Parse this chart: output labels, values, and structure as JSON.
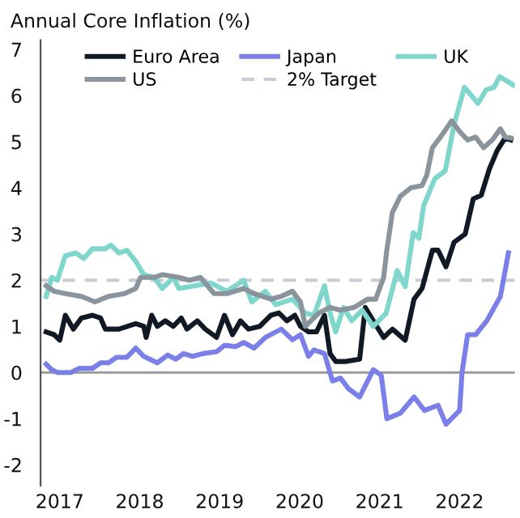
{
  "chart_data": {
    "type": "line",
    "title": "Annual Core Inflation (%)",
    "series": [
      {
        "name": "Euro Area",
        "color": "#111a24",
        "x": [
          2016.83,
          2016.93,
          2017.0,
          2017.07,
          2017.17,
          2017.27,
          2017.41,
          2017.51,
          2017.57,
          2017.74,
          2017.95,
          2018.05,
          2018.08,
          2018.15,
          2018.22,
          2018.32,
          2018.42,
          2018.52,
          2018.59,
          2018.72,
          2018.82,
          2018.96,
          2019.06,
          2019.16,
          2019.26,
          2019.36,
          2019.5,
          2019.64,
          2019.74,
          2019.84,
          2019.94,
          2020.01,
          2020.11,
          2020.21,
          2020.31,
          2020.38,
          2020.45,
          2020.58,
          2020.75,
          2020.82,
          2020.92,
          2021.05,
          2021.16,
          2021.32,
          2021.43,
          2021.53,
          2021.66,
          2021.73,
          2021.83,
          2021.93,
          2022.07,
          2022.17,
          2022.27,
          2022.37,
          2022.47,
          2022.57,
          2022.64
        ],
        "values": [
          0.88,
          0.82,
          0.7,
          1.24,
          0.94,
          1.18,
          1.24,
          1.18,
          0.94,
          0.94,
          1.06,
          1.0,
          0.76,
          1.24,
          1.0,
          1.12,
          1.0,
          1.18,
          0.94,
          1.12,
          0.94,
          0.76,
          1.24,
          0.82,
          1.12,
          0.94,
          1.0,
          1.24,
          1.29,
          1.12,
          1.24,
          1.0,
          0.88,
          0.88,
          1.24,
          0.41,
          0.24,
          0.24,
          0.29,
          1.41,
          1.12,
          0.76,
          0.94,
          0.7,
          1.59,
          1.82,
          2.65,
          2.65,
          2.29,
          2.82,
          3.0,
          3.76,
          3.84,
          4.4,
          4.81,
          5.08,
          5.04
        ]
      },
      {
        "name": "Japan",
        "color": "#7b7fe8",
        "x": [
          2016.83,
          2016.9,
          2016.97,
          2017.14,
          2017.24,
          2017.41,
          2017.51,
          2017.61,
          2017.71,
          2017.84,
          2017.95,
          2018.05,
          2018.22,
          2018.35,
          2018.45,
          2018.55,
          2018.66,
          2018.79,
          2018.96,
          2019.06,
          2019.2,
          2019.3,
          2019.43,
          2019.57,
          2019.77,
          2019.91,
          2020.01,
          2020.11,
          2020.18,
          2020.31,
          2020.41,
          2020.51,
          2020.61,
          2020.75,
          2020.92,
          2021.02,
          2021.09,
          2021.26,
          2021.43,
          2021.56,
          2021.73,
          2021.83,
          2022.0,
          2022.03,
          2022.1,
          2022.2,
          2022.34,
          2022.51,
          2022.61
        ],
        "values": [
          0.18,
          0.06,
          0.0,
          0.0,
          0.09,
          0.09,
          0.21,
          0.21,
          0.33,
          0.33,
          0.53,
          0.35,
          0.21,
          0.38,
          0.29,
          0.41,
          0.35,
          0.41,
          0.45,
          0.59,
          0.56,
          0.65,
          0.53,
          0.76,
          0.94,
          0.71,
          0.82,
          0.35,
          0.49,
          0.41,
          -0.18,
          -0.12,
          -0.35,
          -0.53,
          0.06,
          -0.06,
          -1.0,
          -0.88,
          -0.53,
          -0.82,
          -0.71,
          -1.12,
          -0.82,
          0.0,
          0.82,
          0.82,
          1.12,
          1.65,
          2.59
        ]
      },
      {
        "name": "UK",
        "color": "#7fd6cc",
        "x": [
          2016.83,
          2016.9,
          2016.97,
          2017.07,
          2017.2,
          2017.3,
          2017.41,
          2017.57,
          2017.64,
          2017.74,
          2017.84,
          2017.95,
          2018.05,
          2018.18,
          2018.28,
          2018.42,
          2018.49,
          2018.69,
          2018.89,
          2019.09,
          2019.3,
          2019.4,
          2019.57,
          2019.7,
          2019.91,
          2020.07,
          2020.18,
          2020.31,
          2020.38,
          2020.45,
          2020.55,
          2020.65,
          2020.78,
          2020.92,
          2021.08,
          2021.22,
          2021.32,
          2021.42,
          2021.49,
          2021.55,
          2021.69,
          2021.82,
          2021.93,
          2022.06,
          2022.23,
          2022.33,
          2022.43,
          2022.5,
          2022.67
        ],
        "values": [
          1.65,
          2.06,
          2.0,
          2.53,
          2.59,
          2.47,
          2.68,
          2.68,
          2.76,
          2.59,
          2.65,
          2.41,
          2.12,
          2.06,
          1.82,
          2.06,
          1.82,
          1.88,
          1.94,
          1.76,
          2.0,
          1.53,
          1.76,
          1.47,
          1.59,
          1.29,
          1.24,
          1.88,
          1.29,
          0.88,
          1.41,
          1.12,
          1.35,
          1.0,
          1.28,
          2.21,
          1.86,
          3.03,
          2.91,
          3.61,
          4.2,
          4.37,
          5.36,
          6.18,
          5.83,
          6.12,
          6.18,
          6.41,
          6.23
        ]
      },
      {
        "name": "US",
        "color": "#8a949c",
        "x": [
          2016.83,
          2016.93,
          2017.07,
          2017.27,
          2017.44,
          2017.61,
          2017.81,
          2017.95,
          2018.01,
          2018.18,
          2018.28,
          2018.49,
          2018.62,
          2018.76,
          2018.93,
          2019.09,
          2019.3,
          2019.43,
          2019.64,
          2019.77,
          2019.91,
          2020.01,
          2020.07,
          2020.24,
          2020.38,
          2020.51,
          2020.68,
          2020.85,
          2020.95,
          2021.05,
          2021.09,
          2021.16,
          2021.26,
          2021.39,
          2021.53,
          2021.59,
          2021.66,
          2021.76,
          2021.9,
          2022.0,
          2022.1,
          2022.2,
          2022.3,
          2022.41,
          2022.51,
          2022.57,
          2022.64
        ],
        "values": [
          1.88,
          1.76,
          1.71,
          1.65,
          1.53,
          1.65,
          1.71,
          1.82,
          2.06,
          2.06,
          2.12,
          2.06,
          2.0,
          2.06,
          1.71,
          1.71,
          1.82,
          1.71,
          1.59,
          1.65,
          1.76,
          1.53,
          1.0,
          1.29,
          1.41,
          1.35,
          1.41,
          1.59,
          1.59,
          2.06,
          2.65,
          3.47,
          3.82,
          4.0,
          4.05,
          4.28,
          4.87,
          5.1,
          5.45,
          5.22,
          5.04,
          5.1,
          4.87,
          5.04,
          5.28,
          5.1,
          5.08
        ]
      }
    ],
    "ref_lines": [
      {
        "axis": "y",
        "value": 2,
        "label": "2% Target",
        "color": "#c8ccd4",
        "line_style": "dashed"
      },
      {
        "axis": "y",
        "value": 0,
        "color": "#9a9a9a",
        "line_style": "solid"
      }
    ],
    "xlim": [
      2016.76,
      2022.69
    ],
    "xticks": [
      2017,
      2018,
      2019,
      2020,
      2021,
      2022
    ],
    "ylim": [
      -2.45,
      7.2
    ],
    "yticks": [
      -2,
      -1,
      0,
      1,
      2,
      3,
      4,
      5,
      6,
      7
    ],
    "legend": "top",
    "grid": false,
    "line_style": "solid",
    "marker": "none"
  }
}
